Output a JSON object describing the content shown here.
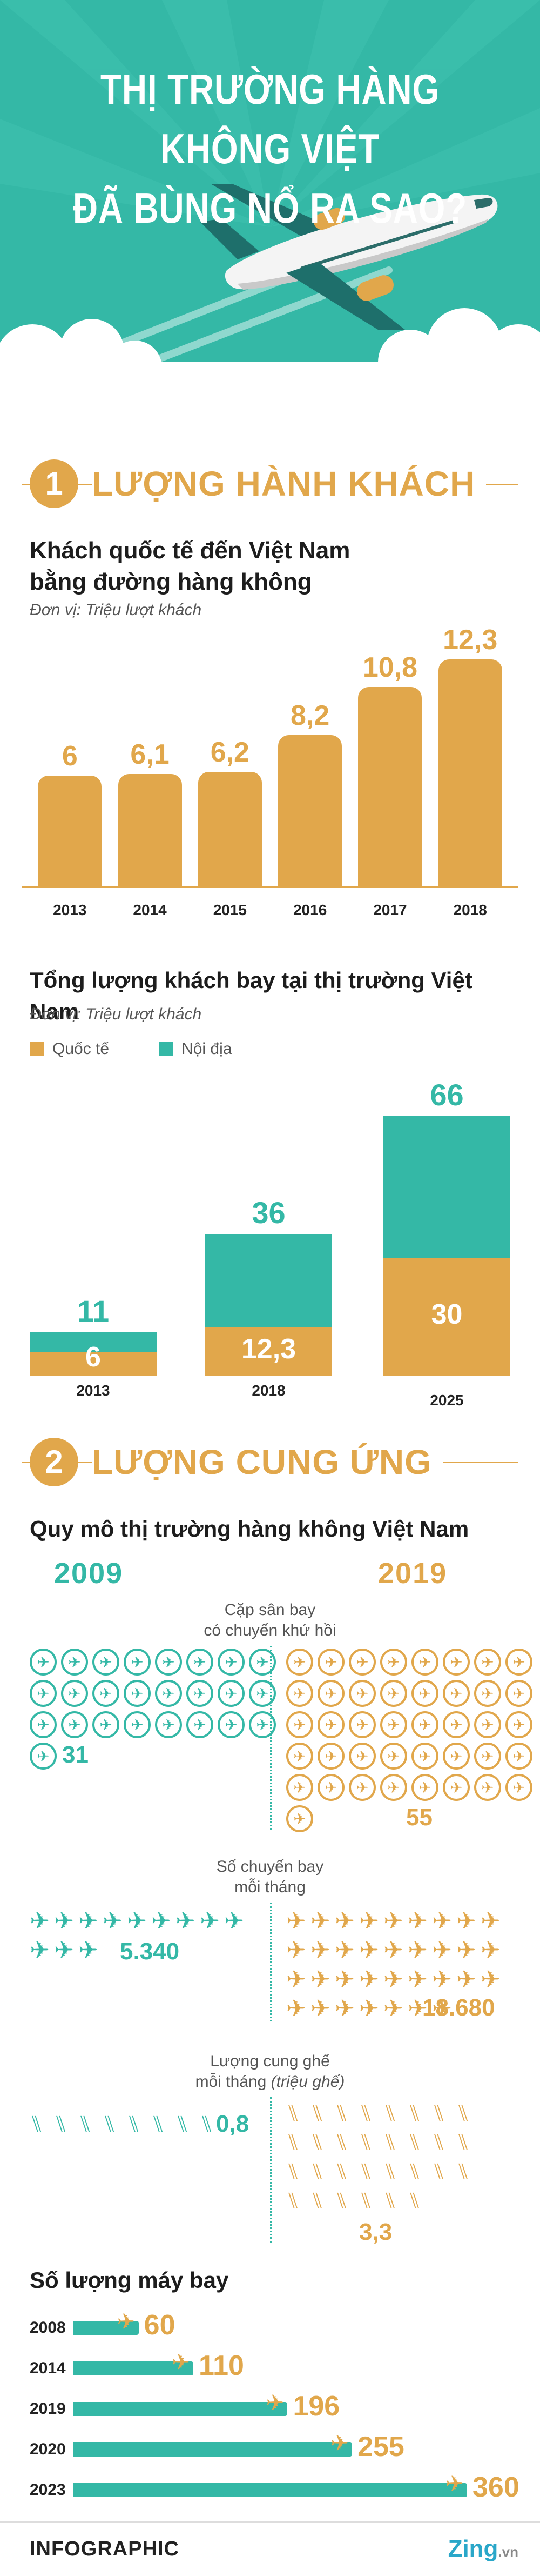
{
  "header": {
    "title_line1": "THỊ TRƯỜNG HÀNG KHÔNG VIỆT",
    "title_line2": "ĐÃ BÙNG NỔ RA SAO?"
  },
  "section1": {
    "number": "1",
    "title": "LƯỢNG HÀNH KHÁCH",
    "chart1_title_line1": "Khách quốc tế đến Việt Nam",
    "chart1_title_line2": "bằng đường hàng không",
    "chart1_unit": "Đơn vị: Triệu lượt khách",
    "chart2_title": "Tổng lượng khách bay tại thị trường Việt Nam",
    "chart2_unit": "Đơn vị: Triệu lượt khách",
    "legend_intl": "Quốc tế",
    "legend_domestic": "Nội địa"
  },
  "chart_data": [
    {
      "type": "bar",
      "title": "Khách quốc tế đến Việt Nam bằng đường hàng không",
      "unit": "Đơn vị: Triệu lượt khách",
      "categories": [
        "2013",
        "2014",
        "2015",
        "2016",
        "2017",
        "2018"
      ],
      "values": [
        6,
        6.1,
        6.2,
        8.2,
        10.8,
        12.3
      ],
      "value_labels": [
        "6",
        "6,1",
        "6,2",
        "8,2",
        "10,8",
        "12,3"
      ],
      "color": "#e1a74b"
    },
    {
      "type": "bar",
      "title": "Tổng lượng khách bay tại thị trường Việt Nam",
      "unit": "Đơn vị: Triệu lượt khách",
      "stacked": true,
      "categories": [
        "2013",
        "2018",
        "2025"
      ],
      "series": [
        {
          "name": "Quốc tế",
          "values": [
            6,
            12.3,
            30
          ],
          "value_labels": [
            "6",
            "12,3",
            "30"
          ],
          "color": "#e1a74b"
        },
        {
          "name": "Nội địa",
          "totals": [
            11,
            36,
            66
          ],
          "total_labels": [
            "11",
            "36",
            "66"
          ],
          "color": "#34b8a6"
        }
      ]
    }
  ],
  "section2": {
    "number": "2",
    "title": "LƯỢNG CUNG ỨNG",
    "market_title": "Quy mô thị trường hàng không Việt Nam",
    "year_left": "2009",
    "year_right": "2019",
    "airport_label_line1": "Cặp sân bay",
    "airport_label_line2": "có chuyến khứ hồi",
    "airport_2009": "31",
    "airport_2019": "55",
    "flights_label_line1": "Số chuyến bay",
    "flights_label_line2": "mỗi tháng",
    "flights_2009": "5.340",
    "flights_2019": "18.680",
    "seats_label_line1": "Lượng cung ghế",
    "seats_label_line2a": "mỗi tháng ",
    "seats_label_line2b": "(triệu ghế)",
    "seats_2009": "0,8",
    "seats_2019": "3,3",
    "fleet_title": "Số lượng máy bay",
    "fleet": [
      {
        "year": "2008",
        "value": 60,
        "label": "60"
      },
      {
        "year": "2014",
        "value": 110,
        "label": "110"
      },
      {
        "year": "2019",
        "value": 196,
        "label": "196"
      },
      {
        "year": "2020",
        "value": 255,
        "label": "255"
      },
      {
        "year": "2023",
        "value": 360,
        "label": "360"
      }
    ]
  },
  "footer": {
    "left": "INFOGRAPHIC",
    "brand": "Zing",
    "brand_suffix": ".vn"
  },
  "colors": {
    "teal": "#34b8a6",
    "orange": "#e1a74b"
  },
  "icons": {
    "airport": "plane-ring-icon",
    "flight": "plane-icon",
    "seat": "seat-icon"
  }
}
